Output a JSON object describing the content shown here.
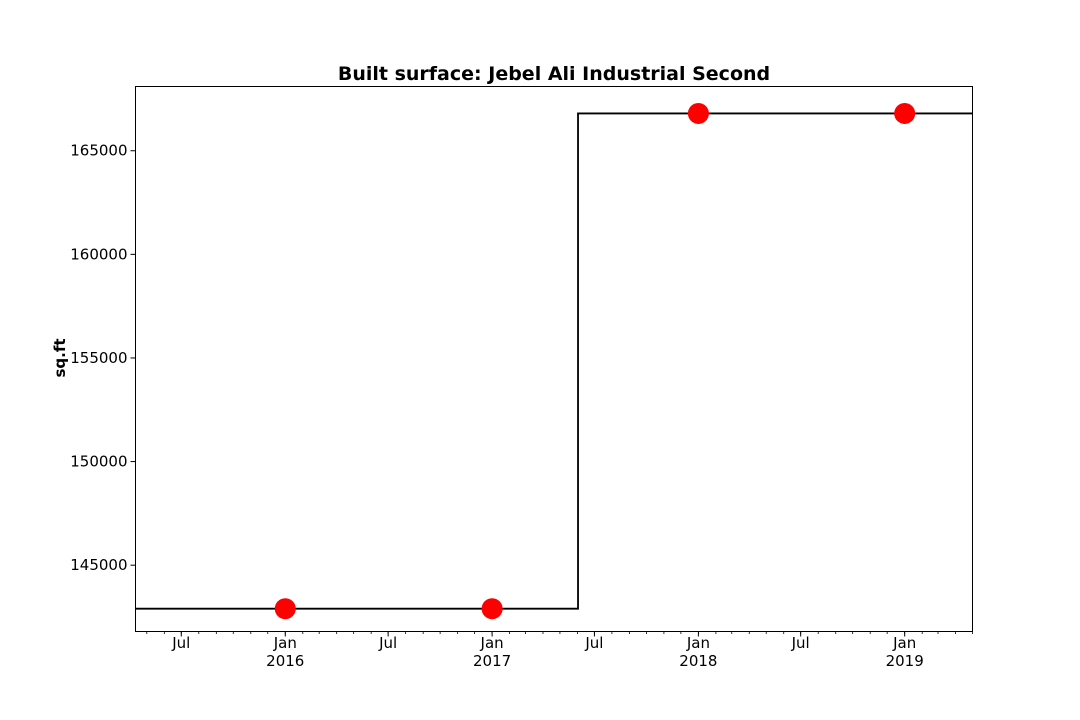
{
  "chart_data": {
    "type": "line",
    "title": "Built surface: Jebel Ali Industrial Second",
    "xlabel": "",
    "ylabel": "sq.ft",
    "xlim": [
      "2015-04-11",
      "2019-05-01"
    ],
    "ylim": [
      141800,
      168100
    ],
    "y_ticks": [
      145000,
      150000,
      155000,
      160000,
      165000
    ],
    "y_tick_labels": [
      "145000",
      "150000",
      "155000",
      "160000",
      "165000"
    ],
    "x_ticks": [
      {
        "date": "2015-07-01",
        "label": "Jul",
        "year": ""
      },
      {
        "date": "2016-01-01",
        "label": "Jan",
        "year": "2016"
      },
      {
        "date": "2016-07-01",
        "label": "Jul",
        "year": ""
      },
      {
        "date": "2017-01-01",
        "label": "Jan",
        "year": "2017"
      },
      {
        "date": "2017-07-01",
        "label": "Jul",
        "year": ""
      },
      {
        "date": "2018-01-01",
        "label": "Jan",
        "year": "2018"
      },
      {
        "date": "2018-07-01",
        "label": "Jul",
        "year": ""
      },
      {
        "date": "2019-01-01",
        "label": "Jan",
        "year": "2019"
      }
    ],
    "step_line": {
      "color": "#000000",
      "x": [
        "2015-04-11",
        "2017-06-02",
        "2017-06-02",
        "2019-05-01"
      ],
      "y": [
        142900,
        142900,
        166800,
        166800
      ]
    },
    "points": {
      "color": "#ff0000",
      "x": [
        "2016-01-01",
        "2017-01-01",
        "2018-01-01",
        "2019-01-01"
      ],
      "y": [
        142900,
        142900,
        166800,
        166800
      ]
    },
    "grid": false,
    "legend": "none"
  }
}
